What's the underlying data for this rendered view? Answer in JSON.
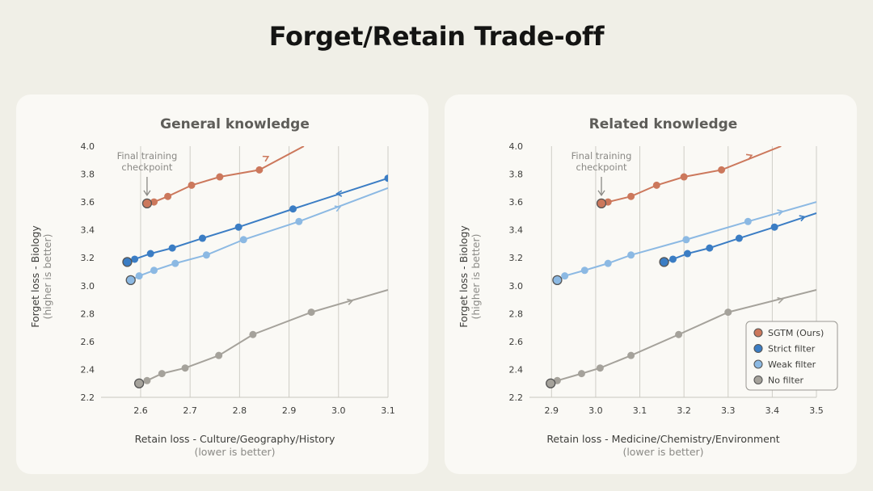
{
  "page": {
    "title": "Forget/Retain Trade-off"
  },
  "colors": {
    "SGTM (Ours)": "#cc785c",
    "Strict filter": "#3b7dc4",
    "Weak filter": "#8cb9e3",
    "No filter": "#a5a29b",
    "checkpoint_outline": "#555555",
    "text": "#5e5d59",
    "grid": "#cfcdc6"
  },
  "legend": {
    "position": "lower-right (right chart only)",
    "items": [
      "SGTM (Ours)",
      "Strict filter",
      "Weak filter",
      "No filter"
    ]
  },
  "chart_data": [
    {
      "type": "line",
      "title": "General knowledge",
      "xlabel": "Retain loss - Culture/Geography/History",
      "xlabel_note": "(lower is better)",
      "ylabel": "Forget loss - Biology",
      "ylabel_note": "(higher is better)",
      "xlim": [
        2.52,
        3.1
      ],
      "ylim": [
        2.2,
        4.0
      ],
      "xticks": [
        "2.6",
        "2.7",
        "2.8",
        "2.9",
        "3.0",
        "3.1"
      ],
      "yticks": [
        "2.2",
        "2.4",
        "2.6",
        "2.8",
        "3.0",
        "3.2",
        "3.4",
        "3.6",
        "3.8",
        "4.0"
      ],
      "grid": "vertical lines at x ticks",
      "annotation": {
        "text": [
          "Final training",
          "checkpoint"
        ],
        "x": 2.613,
        "y": 3.59
      },
      "series": [
        {
          "name": "SGTM (Ours)",
          "x": [
            2.613,
            2.627,
            2.655,
            2.703,
            2.76,
            2.84
          ],
          "y": [
            3.59,
            3.6,
            3.64,
            3.72,
            3.78,
            3.83
          ],
          "line_end": [
            2.93,
            4.0
          ],
          "arrow_at": [
            2.855,
            3.92
          ]
        },
        {
          "name": "Strict filter",
          "x": [
            2.573,
            2.588,
            2.62,
            2.664,
            2.725,
            2.798,
            2.908,
            3.1
          ],
          "y": [
            3.17,
            3.19,
            3.23,
            3.27,
            3.34,
            3.42,
            3.55,
            3.77
          ],
          "line_end": [
            3.1,
            3.77
          ],
          "arrow_at": [
            3.0,
            3.66
          ]
        },
        {
          "name": "Weak filter",
          "x": [
            2.58,
            2.597,
            2.627,
            2.67,
            2.733,
            2.808,
            2.92
          ],
          "y": [
            3.04,
            3.07,
            3.11,
            3.16,
            3.22,
            3.33,
            3.46
          ],
          "line_end": [
            3.1,
            3.7
          ],
          "arrow_at": [
            3.0,
            3.56
          ]
        },
        {
          "name": "No filter",
          "x": [
            2.597,
            2.613,
            2.643,
            2.69,
            2.758,
            2.827,
            2.945
          ],
          "y": [
            2.3,
            2.32,
            2.37,
            2.41,
            2.5,
            2.65,
            2.81
          ],
          "line_end": [
            3.1,
            2.97
          ],
          "arrow_at": [
            3.025,
            2.89
          ]
        }
      ]
    },
    {
      "type": "line",
      "title": "Related knowledge",
      "xlabel": "Retain loss - Medicine/Chemistry/Environment",
      "xlabel_note": "(lower is better)",
      "ylabel": "Forget loss - Biology",
      "ylabel_note": "(higher is better)",
      "xlim": [
        2.85,
        3.5
      ],
      "ylim": [
        2.2,
        4.0
      ],
      "xticks": [
        "2.9",
        "3.0",
        "3.1",
        "3.2",
        "3.3",
        "3.4",
        "3.5"
      ],
      "yticks": [
        "2.2",
        "2.4",
        "2.6",
        "2.8",
        "3.0",
        "3.2",
        "3.4",
        "3.6",
        "3.8",
        "4.0"
      ],
      "grid": "vertical lines at x ticks",
      "annotation": {
        "text": [
          "Final training",
          "checkpoint"
        ],
        "x": 3.013,
        "y": 3.59
      },
      "series": [
        {
          "name": "SGTM (Ours)",
          "x": [
            3.013,
            3.028,
            3.08,
            3.138,
            3.2,
            3.285
          ],
          "y": [
            3.59,
            3.6,
            3.64,
            3.72,
            3.78,
            3.83
          ],
          "line_end": [
            3.42,
            4.0
          ],
          "arrow_at": [
            3.35,
            3.93
          ]
        },
        {
          "name": "Strict filter",
          "x": [
            3.155,
            3.175,
            3.208,
            3.258,
            3.325,
            3.405
          ],
          "y": [
            3.17,
            3.19,
            3.23,
            3.27,
            3.34,
            3.42
          ],
          "line_end": [
            3.5,
            3.52
          ],
          "arrow_at": [
            3.47,
            3.49
          ]
        },
        {
          "name": "Weak filter",
          "x": [
            2.913,
            2.93,
            2.975,
            3.028,
            3.08,
            3.205,
            3.345
          ],
          "y": [
            3.04,
            3.07,
            3.11,
            3.16,
            3.22,
            3.33,
            3.46
          ],
          "line_end": [
            3.5,
            3.6
          ],
          "arrow_at": [
            3.42,
            3.53
          ]
        },
        {
          "name": "No filter",
          "x": [
            2.898,
            2.913,
            2.968,
            3.01,
            3.08,
            3.188,
            3.3
          ],
          "y": [
            2.3,
            2.32,
            2.37,
            2.41,
            2.5,
            2.65,
            2.81
          ],
          "line_end": [
            3.5,
            2.97
          ],
          "arrow_at": [
            3.42,
            2.9
          ]
        }
      ]
    }
  ]
}
